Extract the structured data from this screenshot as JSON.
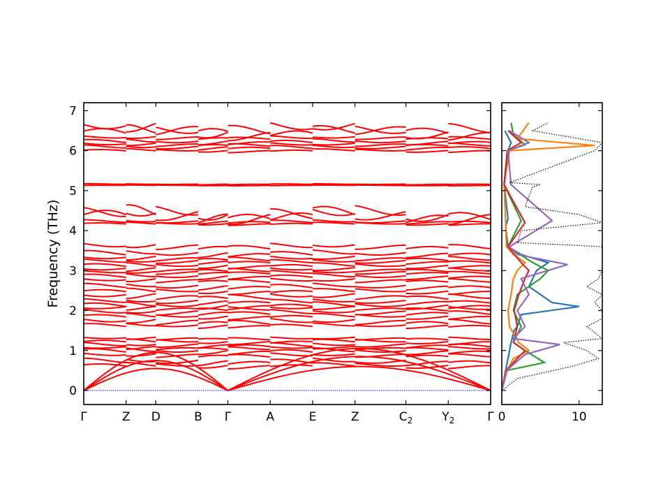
{
  "chart_data": [
    {
      "type": "line",
      "title": "",
      "xlabel": "",
      "ylabel": "Frequency (THz)",
      "ylim": [
        -0.35,
        7.2
      ],
      "y_ticks": [
        0,
        1,
        2,
        3,
        4,
        5,
        6,
        7
      ],
      "grid": false,
      "high_symmetry_points": [
        {
          "label": "Γ",
          "sub": "",
          "x": 0
        },
        {
          "label": "Z",
          "sub": "",
          "x": 1
        },
        {
          "label": "D",
          "sub": "",
          "x": 1.7
        },
        {
          "label": "B",
          "sub": "",
          "x": 2.7
        },
        {
          "label": "Γ",
          "sub": "",
          "x": 3.4
        },
        {
          "label": "A",
          "sub": "",
          "x": 4.4
        },
        {
          "label": "E",
          "sub": "",
          "x": 5.4
        },
        {
          "label": "Z",
          "sub": "",
          "x": 6.4
        },
        {
          "label": "C",
          "sub": "2",
          "x": 7.6
        },
        {
          "label": "Y",
          "sub": "2",
          "x": 8.6
        },
        {
          "label": "Γ",
          "sub": "",
          "x": 9.6
        }
      ],
      "zero_line": {
        "value": 0,
        "color": "#0000ff"
      },
      "band_color": "#ff0000",
      "acoustic_branches": [
        {
          "endpoints": [
            0,
            3.4
          ],
          "peak": 0.55,
          "series": "acoustic-1"
        },
        {
          "endpoints": [
            0,
            3.4
          ],
          "peak": 0.75,
          "series": "acoustic-2"
        },
        {
          "endpoints": [
            0,
            3.4
          ],
          "peak": 0.95,
          "series": "acoustic-3"
        },
        {
          "endpoints": [
            3.4,
            9.6
          ],
          "peak": 0.6,
          "series": "acoustic-1"
        },
        {
          "endpoints": [
            3.4,
            9.6
          ],
          "peak": 0.85,
          "series": "acoustic-2"
        },
        {
          "endpoints": [
            3.4,
            9.6
          ],
          "peak": 1.05,
          "series": "acoustic-3"
        }
      ],
      "optical_bands": [
        {
          "base": 0.62,
          "amp": 0.08,
          "phase": 0.3
        },
        {
          "base": 0.72,
          "amp": 0.1,
          "phase": 1.2
        },
        {
          "base": 0.88,
          "amp": 0.07,
          "phase": 2.1
        },
        {
          "base": 0.98,
          "amp": 0.09,
          "phase": 0.7
        },
        {
          "base": 1.06,
          "amp": 0.06,
          "phase": 2.8
        },
        {
          "base": 1.13,
          "amp": 0.08,
          "phase": 1.6
        },
        {
          "base": 1.22,
          "amp": 0.07,
          "phase": 0.1
        },
        {
          "base": 1.3,
          "amp": 0.05,
          "phase": 2.4
        },
        {
          "base": 1.62,
          "amp": 0.07,
          "phase": 0.9
        },
        {
          "base": 1.72,
          "amp": 0.1,
          "phase": 2.2
        },
        {
          "base": 1.85,
          "amp": 0.08,
          "phase": 0.4
        },
        {
          "base": 1.95,
          "amp": 0.09,
          "phase": 1.8
        },
        {
          "base": 2.05,
          "amp": 0.07,
          "phase": 2.9
        },
        {
          "base": 2.12,
          "amp": 0.1,
          "phase": 0.6
        },
        {
          "base": 2.22,
          "amp": 0.08,
          "phase": 1.4
        },
        {
          "base": 2.35,
          "amp": 0.1,
          "phase": 2.6
        },
        {
          "base": 2.48,
          "amp": 0.08,
          "phase": 0.2
        },
        {
          "base": 2.6,
          "amp": 0.09,
          "phase": 1.1
        },
        {
          "base": 2.75,
          "amp": 0.07,
          "phase": 2.3
        },
        {
          "base": 2.85,
          "amp": 0.08,
          "phase": 0.8
        },
        {
          "base": 2.95,
          "amp": 0.06,
          "phase": 1.9
        },
        {
          "base": 3.02,
          "amp": 0.07,
          "phase": 2.7
        },
        {
          "base": 3.12,
          "amp": 0.08,
          "phase": 0.5
        },
        {
          "base": 3.22,
          "amp": 0.07,
          "phase": 1.5
        },
        {
          "base": 3.3,
          "amp": 0.08,
          "phase": 2.5
        },
        {
          "base": 3.42,
          "amp": 0.1,
          "phase": 1.0
        },
        {
          "base": 3.6,
          "amp": 0.1,
          "phase": 2.0
        },
        {
          "base": 4.17,
          "amp": 0.04,
          "phase": 0.3
        },
        {
          "base": 4.22,
          "amp": 0.06,
          "phase": 1.3
        },
        {
          "base": 4.4,
          "amp": 0.25,
          "phase": 0.0
        },
        {
          "base": 4.38,
          "amp": 0.22,
          "phase": 1.57
        },
        {
          "base": 5.13,
          "amp": 0.01,
          "phase": 0.0
        },
        {
          "base": 5.16,
          "amp": 0.015,
          "phase": 1.0
        },
        {
          "base": 6.0,
          "amp": 0.05,
          "phase": 0.3
        },
        {
          "base": 6.08,
          "amp": 0.07,
          "phase": 1.4
        },
        {
          "base": 6.15,
          "amp": 0.06,
          "phase": 2.3
        },
        {
          "base": 6.22,
          "amp": 0.08,
          "phase": 0.8
        },
        {
          "base": 6.32,
          "amp": 0.06,
          "phase": 2.0
        },
        {
          "base": 6.45,
          "amp": 0.2,
          "phase": 0.2
        },
        {
          "base": 6.55,
          "amp": 0.2,
          "phase": 2.4
        }
      ]
    },
    {
      "type": "line",
      "title": "",
      "xlabel": "",
      "ylabel": "",
      "xlim": [
        0,
        13
      ],
      "x_ticks": [
        0,
        10
      ],
      "ylim": [
        -0.35,
        7.2
      ],
      "grid": false,
      "series": [
        {
          "color": "#1f77b4",
          "style": "solid",
          "y": [
            0.0,
            0.5,
            1.0,
            1.2,
            1.5,
            1.6,
            1.9,
            2.1,
            2.2,
            2.4,
            2.6,
            2.8,
            3.0,
            3.2,
            3.4,
            3.6,
            4.1,
            4.3,
            5.15,
            6.0,
            6.2,
            6.5
          ],
          "x": [
            0,
            0.5,
            1.0,
            1.2,
            1.6,
            2.0,
            2.5,
            10.0,
            6.5,
            5.0,
            3.5,
            4.0,
            4.5,
            6.0,
            2.5,
            0.8,
            0.5,
            0.8,
            0.3,
            0.8,
            1.2,
            0.4
          ]
        },
        {
          "color": "#ff7f0e",
          "style": "solid",
          "y": [
            0.0,
            0.5,
            0.8,
            1.0,
            1.2,
            1.6,
            2.0,
            2.4,
            2.8,
            3.0,
            3.2,
            3.4,
            3.6,
            4.2,
            5.15,
            6.0,
            6.13,
            6.3,
            6.7
          ],
          "x": [
            0,
            0.7,
            1.5,
            3.5,
            2.2,
            1.0,
            0.8,
            1.2,
            1.5,
            2.0,
            3.0,
            1.5,
            0.6,
            0.5,
            0.3,
            1.0,
            12.0,
            2.0,
            3.5
          ]
        },
        {
          "color": "#2ca02c",
          "style": "solid",
          "y": [
            0.0,
            0.5,
            0.7,
            1.0,
            1.2,
            1.6,
            2.0,
            2.4,
            2.8,
            3.0,
            3.2,
            3.6,
            4.25,
            5.15,
            6.0,
            6.15,
            6.4,
            6.7
          ],
          "x": [
            0,
            0.6,
            5.5,
            3.0,
            1.5,
            2.5,
            1.5,
            2.0,
            5.0,
            6.0,
            4.0,
            0.8,
            2.5,
            0.3,
            0.8,
            3.0,
            1.5,
            1.2
          ]
        },
        {
          "color": "#d62728",
          "style": "solid",
          "y": [
            0.0,
            0.5,
            0.8,
            1.0,
            1.2,
            1.6,
            2.0,
            2.4,
            2.8,
            3.0,
            3.2,
            3.6,
            4.2,
            5.15,
            6.0,
            6.2,
            6.5
          ],
          "x": [
            0,
            0.5,
            2.0,
            3.0,
            1.5,
            2.0,
            1.6,
            2.2,
            3.0,
            3.5,
            2.5,
            0.8,
            3.0,
            0.3,
            0.7,
            2.5,
            0.8
          ]
        },
        {
          "color": "#9467bd",
          "style": "solid",
          "y": [
            0.0,
            0.5,
            0.9,
            1.15,
            1.3,
            1.6,
            2.0,
            2.4,
            2.8,
            3.15,
            3.4,
            3.6,
            4.25,
            5.15,
            6.0,
            6.2,
            6.5
          ],
          "x": [
            0,
            0.6,
            3.0,
            7.5,
            1.5,
            3.0,
            2.0,
            3.5,
            2.5,
            8.5,
            2.0,
            1.0,
            6.5,
            1.2,
            0.8,
            3.5,
            1.0
          ]
        },
        {
          "color": "#000000",
          "style": "dotted",
          "y": [
            0.0,
            0.3,
            0.6,
            0.8,
            1.0,
            1.2,
            1.3,
            1.6,
            1.8,
            2.0,
            2.2,
            2.4,
            2.6,
            2.8,
            3.0,
            3.1,
            3.3,
            3.6,
            3.7,
            4.0,
            4.2,
            4.4,
            4.6,
            5.1,
            5.15,
            5.2,
            6.0,
            6.2,
            6.5,
            6.7
          ],
          "x": [
            0,
            2.0,
            9.0,
            12.5,
            11.0,
            8.0,
            13.0,
            11.0,
            13.0,
            13.0,
            12.0,
            13.0,
            11.0,
            12.5,
            13.0,
            13.0,
            13.0,
            13.0,
            2.0,
            2.5,
            13.0,
            10.0,
            3.0,
            4.0,
            5.0,
            1.0,
            12.0,
            13.0,
            4.0,
            6.0
          ]
        }
      ]
    }
  ]
}
